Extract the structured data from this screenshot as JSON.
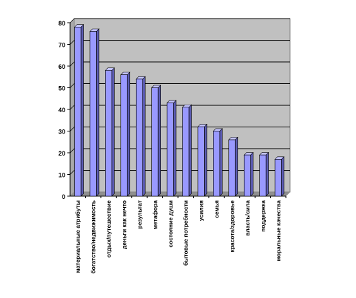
{
  "chart_data": {
    "type": "bar",
    "title": "",
    "xlabel": "",
    "ylabel": "",
    "ylim": [
      0,
      80
    ],
    "yticks": [
      "0",
      "10",
      "20",
      "30",
      "40",
      "50",
      "60",
      "70",
      "80"
    ],
    "grid": true,
    "legend": "none",
    "categories": [
      "материальные атрибуты",
      "богатство/недвижимость",
      "отдых/путешествие",
      "деньги как нечто",
      "результат",
      "метафора",
      "состояние души",
      "бытовые потребности",
      "усилия",
      "семья",
      "красота/здоровье",
      "власть/сила",
      "поддержка",
      "моральные качества"
    ],
    "values": [
      78,
      76,
      58,
      56,
      54,
      50,
      43,
      41,
      32,
      30,
      26,
      19,
      19,
      17
    ],
    "colors": {
      "plot_background": "#c0c0c0",
      "bar_front": "#9999ff",
      "bar_side": "#5b5bb0",
      "bar_top": "#c3c3ff",
      "grid": "#000000",
      "axis": "#000000"
    }
  }
}
